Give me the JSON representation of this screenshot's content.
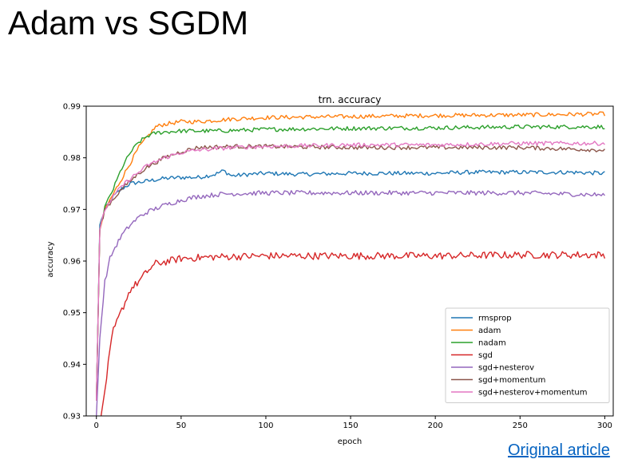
{
  "slide": {
    "title": "Adam vs SGDM",
    "link_label": "Original article"
  },
  "chart_data": {
    "type": "line",
    "title": "trn. accuracy",
    "xlabel": "epoch",
    "ylabel": "accuracy",
    "xlim": [
      -6,
      305
    ],
    "ylim": [
      0.93,
      0.99
    ],
    "xticks": [
      0,
      50,
      100,
      150,
      200,
      250,
      300
    ],
    "yticks": [
      0.93,
      0.94,
      0.95,
      0.96,
      0.97,
      0.98,
      0.99
    ],
    "xtick_labels": [
      "0",
      "50",
      "100",
      "150",
      "200",
      "250",
      "300"
    ],
    "ytick_labels": [
      "0.93",
      "0.94",
      "0.95",
      "0.96",
      "0.97",
      "0.98",
      "0.99"
    ],
    "grid": false,
    "legend_position": "lower-right",
    "series": [
      {
        "name": "rmsprop",
        "color": "#1f77b4",
        "x": [
          0,
          2,
          5,
          10,
          15,
          20,
          30,
          40,
          50,
          60,
          70,
          75,
          80,
          90,
          100,
          120,
          150,
          180,
          200,
          220,
          250,
          280,
          300
        ],
        "y": [
          0.933,
          0.967,
          0.97,
          0.9725,
          0.974,
          0.975,
          0.9755,
          0.976,
          0.9762,
          0.9762,
          0.9768,
          0.9775,
          0.9765,
          0.9768,
          0.977,
          0.9768,
          0.977,
          0.977,
          0.977,
          0.9772,
          0.9772,
          0.9772,
          0.977
        ]
      },
      {
        "name": "adam",
        "color": "#ff7f0e",
        "x": [
          0,
          2,
          5,
          10,
          15,
          20,
          25,
          30,
          35,
          40,
          50,
          60,
          80,
          100,
          150,
          200,
          250,
          300
        ],
        "y": [
          0.933,
          0.966,
          0.97,
          0.973,
          0.976,
          0.979,
          0.982,
          0.984,
          0.986,
          0.9865,
          0.987,
          0.987,
          0.9875,
          0.9878,
          0.988,
          0.9882,
          0.9883,
          0.9885
        ]
      },
      {
        "name": "nadam",
        "color": "#2ca02c",
        "x": [
          0,
          2,
          5,
          10,
          15,
          20,
          25,
          30,
          35,
          40,
          50,
          70,
          100,
          150,
          200,
          250,
          300
        ],
        "y": [
          0.933,
          0.966,
          0.9705,
          0.974,
          0.978,
          0.981,
          0.983,
          0.9842,
          0.9848,
          0.985,
          0.9852,
          0.9852,
          0.9855,
          0.9857,
          0.9858,
          0.986,
          0.986
        ]
      },
      {
        "name": "sgd",
        "color": "#d62728",
        "x": [
          0,
          3,
          5,
          8,
          10,
          15,
          20,
          25,
          30,
          35,
          40,
          50,
          70,
          100,
          150,
          200,
          250,
          300
        ],
        "y": [
          0.925,
          0.93,
          0.935,
          0.9425,
          0.9465,
          0.9505,
          0.9545,
          0.956,
          0.958,
          0.9595,
          0.9598,
          0.9605,
          0.9608,
          0.961,
          0.961,
          0.961,
          0.9612,
          0.9612
        ]
      },
      {
        "name": "sgd+nesterov",
        "color": "#9467bd",
        "x": [
          0,
          2,
          5,
          8,
          10,
          15,
          20,
          25,
          30,
          40,
          50,
          60,
          75,
          100,
          150,
          200,
          250,
          300
        ],
        "y": [
          0.93,
          0.945,
          0.956,
          0.9605,
          0.962,
          0.965,
          0.967,
          0.9685,
          0.9695,
          0.9708,
          0.9718,
          0.9725,
          0.973,
          0.9732,
          0.9732,
          0.9732,
          0.9732,
          0.9728
        ]
      },
      {
        "name": "sgd+momentum",
        "color": "#8c564b",
        "x": [
          0,
          2,
          5,
          10,
          15,
          20,
          25,
          30,
          40,
          50,
          60,
          80,
          100,
          150,
          200,
          250,
          300
        ],
        "y": [
          0.933,
          0.966,
          0.97,
          0.972,
          0.974,
          0.9755,
          0.977,
          0.9782,
          0.98,
          0.9812,
          0.982,
          0.9822,
          0.9822,
          0.982,
          0.982,
          0.982,
          0.9815
        ]
      },
      {
        "name": "sgd+nesterov+momentum",
        "color": "#e377c2",
        "x": [
          0,
          2,
          5,
          10,
          15,
          20,
          25,
          30,
          40,
          50,
          60,
          80,
          100,
          150,
          200,
          250,
          300
        ],
        "y": [
          0.933,
          0.966,
          0.97,
          0.9725,
          0.9745,
          0.976,
          0.9772,
          0.9785,
          0.98,
          0.981,
          0.9815,
          0.982,
          0.9822,
          0.9825,
          0.9825,
          0.9828,
          0.9828
        ]
      }
    ]
  }
}
